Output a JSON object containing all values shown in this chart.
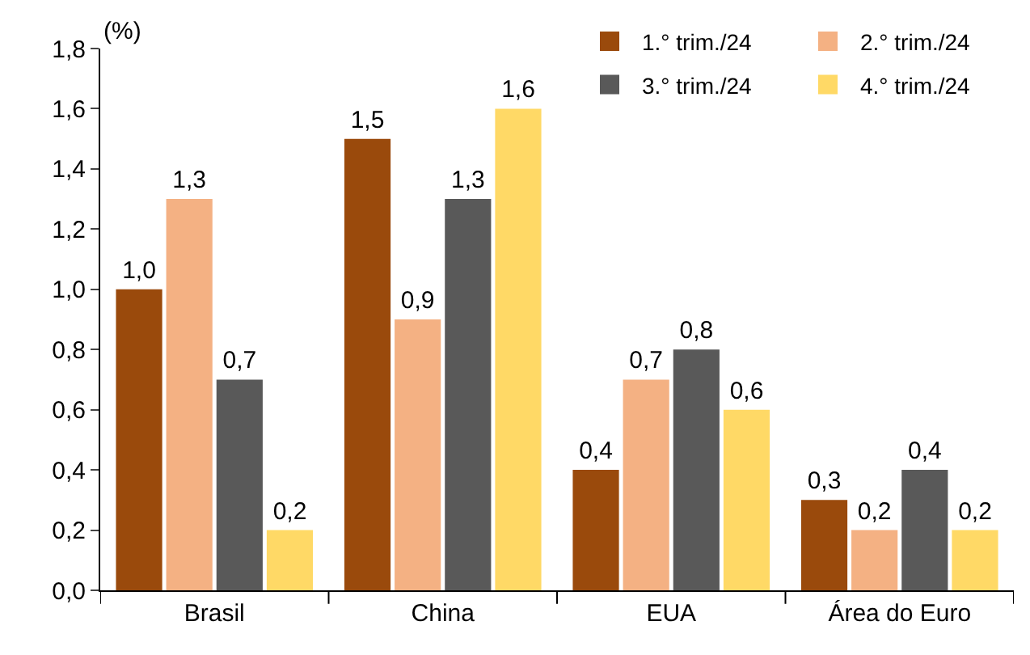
{
  "chart_data": {
    "type": "bar",
    "ylabel": "(%)",
    "categories": [
      "Brasil",
      "China",
      "EUA",
      "Área do Euro"
    ],
    "series": [
      {
        "name": "1.° trim./24",
        "color": "#9a4a0c",
        "values": [
          1.0,
          1.5,
          0.4,
          0.3
        ],
        "value_labels": [
          "1,0",
          "1,5",
          "0,4",
          "0,3"
        ]
      },
      {
        "name": "2.° trim./24",
        "color": "#f4b183",
        "values": [
          1.3,
          0.9,
          0.7,
          0.2
        ],
        "value_labels": [
          "1,3",
          "0,9",
          "0,7",
          "0,2"
        ]
      },
      {
        "name": "3.° trim./24",
        "color": "#595959",
        "values": [
          0.7,
          1.3,
          0.8,
          0.4
        ],
        "value_labels": [
          "0,7",
          "1,3",
          "0,8",
          "0,4"
        ]
      },
      {
        "name": "4.° trim./24",
        "color": "#ffd966",
        "values": [
          0.2,
          1.6,
          0.6,
          0.2
        ],
        "value_labels": [
          "0,2",
          "1,6",
          "0,6",
          "0,2"
        ]
      }
    ],
    "ylim": [
      0,
      1.8
    ],
    "yticks": [
      {
        "value": 0,
        "label": "0,0"
      },
      {
        "value": 0.2,
        "label": "0,2"
      },
      {
        "value": 0.4,
        "label": "0,4"
      },
      {
        "value": 0.6,
        "label": "0,6"
      },
      {
        "value": 0.8,
        "label": "0,8"
      },
      {
        "value": 1.0,
        "label": "1,0"
      },
      {
        "value": 1.2,
        "label": "1,2"
      },
      {
        "value": 1.4,
        "label": "1,4"
      },
      {
        "value": 1.6,
        "label": "1,6"
      },
      {
        "value": 1.8,
        "label": "1,8"
      }
    ],
    "legend": "top right"
  }
}
